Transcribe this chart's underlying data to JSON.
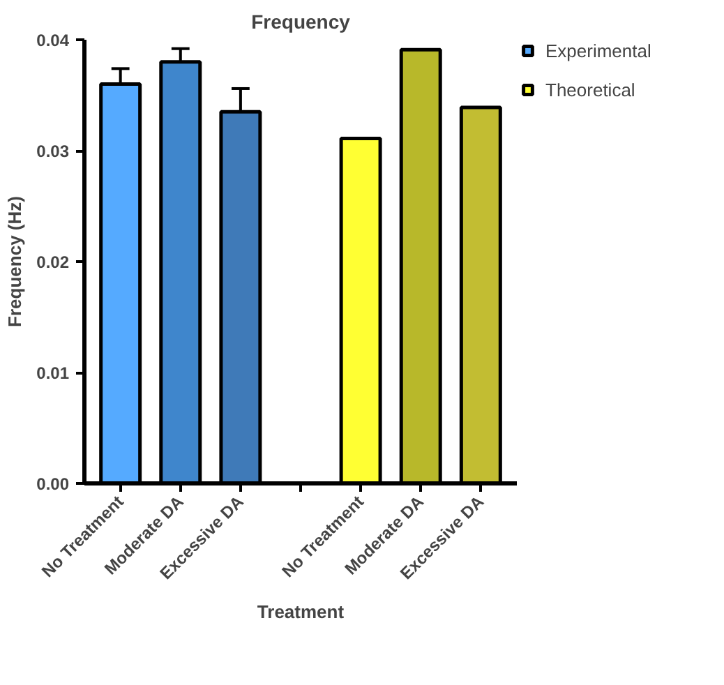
{
  "chart_data": {
    "type": "bar",
    "title": "Frequency",
    "xlabel": "Treatment",
    "ylabel": "Frequency (Hz)",
    "categories": [
      "No Treatment",
      "Moderate DA",
      "Excessive DA",
      null,
      "No Treatment",
      "Moderate DA",
      "Excessive DA"
    ],
    "series": [
      {
        "name": "Experimental",
        "color": "#55aaff",
        "colors": [
          "#55aaff",
          "#3f86cc",
          "#3f7ab8",
          null,
          null,
          null,
          null
        ],
        "values": [
          0.036,
          0.038,
          0.0335,
          null,
          null,
          null,
          null
        ],
        "errors": [
          [
            0.036,
            0.0374
          ],
          [
            0.038,
            0.0392
          ],
          [
            0.0335,
            0.0356
          ],
          null,
          null,
          null,
          null
        ]
      },
      {
        "name": "Theoretical",
        "color": "#ffff33",
        "colors": [
          null,
          null,
          null,
          null,
          "#ffff33",
          "#b8b82a",
          "#c2bd32"
        ],
        "values": [
          null,
          null,
          null,
          null,
          0.0311,
          0.0391,
          0.0339
        ]
      }
    ],
    "ylim": [
      0,
      0.04
    ],
    "yticks": [
      {
        "value": 0,
        "label": "0.00"
      },
      {
        "value": 0.01,
        "label": "0.01"
      },
      {
        "value": 0.02,
        "label": "0.02"
      },
      {
        "value": 0.03,
        "label": "0.03"
      },
      {
        "value": 0.04,
        "label": "0.04"
      }
    ],
    "grid": false,
    "legend": "top right"
  }
}
